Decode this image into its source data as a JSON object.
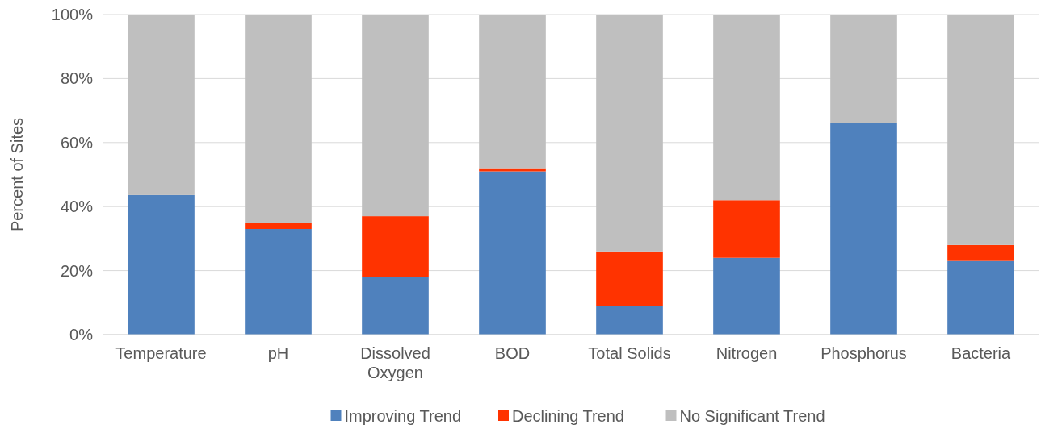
{
  "chart_data": {
    "type": "bar",
    "stacked": true,
    "ylabel": "Percent of Sites",
    "categories": [
      "Temperature",
      "pH",
      "Dissolved Oxygen",
      "BOD",
      "Total Solids",
      "Nitrogen",
      "Phosphorus",
      "Bacteria"
    ],
    "series": [
      {
        "name": "Improving Trend",
        "color": "#4f81bd",
        "values": [
          43.6,
          33,
          18,
          51,
          9,
          24,
          66,
          23
        ]
      },
      {
        "name": "Declining Trend",
        "color": "#ff3300",
        "values": [
          0,
          2,
          19,
          1,
          17,
          18,
          0,
          5
        ]
      },
      {
        "name": "No Significant Trend",
        "color": "#bfbfbf",
        "values": [
          56.4,
          65,
          63,
          48,
          74,
          58,
          34,
          72
        ]
      }
    ],
    "ylim": [
      0,
      100
    ],
    "yticks": [
      {
        "value": 0,
        "label": "0%"
      },
      {
        "value": 20,
        "label": "20%"
      },
      {
        "value": 40,
        "label": "40%"
      },
      {
        "value": 60,
        "label": "60%"
      },
      {
        "value": 80,
        "label": "80%"
      },
      {
        "value": 100,
        "label": "100%"
      }
    ],
    "grid": "y",
    "legend": "bottom"
  }
}
